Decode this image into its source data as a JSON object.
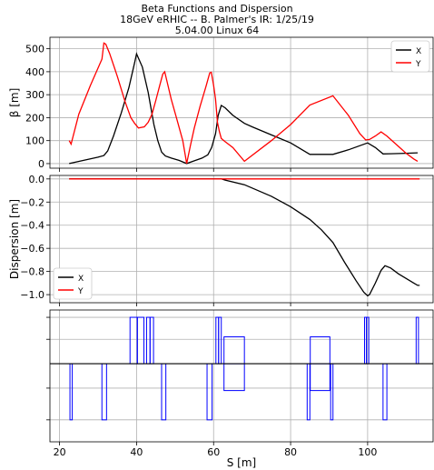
{
  "title": [
    "Beta Functions and Dispersion",
    "18GeV eRHIC -- B. Palmer's IR: 1/25/19",
    "5.04.00 Linux 64"
  ],
  "colors": {
    "x": "#000000",
    "y": "#ff0000",
    "magnet": "#0000ff",
    "grid": "#b0b0b0"
  },
  "chart_data": [
    {
      "type": "line",
      "ylabel": "β [m]",
      "xlim": [
        17.5,
        117
      ],
      "ylim": [
        -20,
        550
      ],
      "xticks": [
        20,
        40,
        60,
        80,
        100
      ],
      "yticks": [
        0,
        100,
        200,
        300,
        400,
        500
      ],
      "ytick_labels": [
        "0",
        "100",
        "200",
        "300",
        "400",
        "500"
      ],
      "legend": {
        "position": "top-right",
        "entries": [
          "X",
          "Y"
        ]
      },
      "grid": true,
      "series": [
        {
          "name": "X",
          "color": "#000000",
          "points": [
            [
              22.5,
              0
            ],
            [
              30,
              28
            ],
            [
              31.5,
              35
            ],
            [
              32.5,
              55
            ],
            [
              34,
              120
            ],
            [
              36,
              220
            ],
            [
              38,
              330
            ],
            [
              39.5,
              440
            ],
            [
              40,
              478
            ],
            [
              41.5,
              420
            ],
            [
              43,
              310
            ],
            [
              44.5,
              170
            ],
            [
              45.5,
              100
            ],
            [
              46.5,
              50
            ],
            [
              47.5,
              33
            ],
            [
              49,
              24
            ],
            [
              51,
              14
            ],
            [
              53,
              0
            ],
            [
              55,
              12
            ],
            [
              57,
              24
            ],
            [
              58.5,
              38
            ],
            [
              59.5,
              70
            ],
            [
              60.5,
              130
            ],
            [
              61.2,
              210
            ],
            [
              62,
              253
            ],
            [
              63,
              243
            ],
            [
              65,
              210
            ],
            [
              68,
              175
            ],
            [
              70,
              160
            ],
            [
              75,
              125
            ],
            [
              80,
              90
            ],
            [
              85,
              40
            ],
            [
              91,
              40
            ],
            [
              95,
              60
            ],
            [
              100,
              90
            ],
            [
              102,
              70
            ],
            [
              104,
              42
            ],
            [
              106,
              43
            ],
            [
              110,
              45
            ],
            [
              113,
              47
            ]
          ]
        },
        {
          "name": "Y",
          "color": "#ff0000",
          "points": [
            [
              22.5,
              100
            ],
            [
              23,
              85
            ],
            [
              25,
              215
            ],
            [
              28,
              340
            ],
            [
              31,
              455
            ],
            [
              31.5,
              525
            ],
            [
              32,
              520
            ],
            [
              33,
              480
            ],
            [
              35,
              380
            ],
            [
              37,
              270
            ],
            [
              38.5,
              200
            ],
            [
              39.5,
              175
            ],
            [
              40.5,
              155
            ],
            [
              42,
              160
            ],
            [
              43,
              180
            ],
            [
              44,
              215
            ],
            [
              45,
              275
            ],
            [
              46,
              340
            ],
            [
              46.8,
              390
            ],
            [
              47.3,
              400
            ],
            [
              48,
              350
            ],
            [
              49,
              280
            ],
            [
              50.5,
              190
            ],
            [
              52,
              100
            ],
            [
              53,
              0
            ],
            [
              54,
              80
            ],
            [
              55,
              155
            ],
            [
              56.5,
              250
            ],
            [
              58,
              335
            ],
            [
              59,
              395
            ],
            [
              59.4,
              398
            ],
            [
              60,
              340
            ],
            [
              60.5,
              280
            ],
            [
              61,
              180
            ],
            [
              61.5,
              140
            ],
            [
              62,
              110
            ],
            [
              63,
              95
            ],
            [
              65,
              70
            ],
            [
              68,
              10
            ],
            [
              75,
              100
            ],
            [
              80,
              170
            ],
            [
              85,
              255
            ],
            [
              91,
              295
            ],
            [
              95,
              210
            ],
            [
              98,
              130
            ],
            [
              99.5,
              103
            ],
            [
              100.5,
              105
            ],
            [
              102,
              120
            ],
            [
              103.5,
              138
            ],
            [
              105,
              120
            ],
            [
              108,
              75
            ],
            [
              110,
              45
            ],
            [
              112,
              20
            ],
            [
              113,
              10
            ]
          ]
        }
      ]
    },
    {
      "type": "line",
      "ylabel": "Dispersion [m]",
      "xlim": [
        17.5,
        117
      ],
      "ylim": [
        -1.07,
        0.03
      ],
      "yticks": [
        0.0,
        -0.2,
        -0.4,
        -0.6,
        -0.8,
        -1.0
      ],
      "ytick_labels": [
        "0.0",
        "−0.2",
        "−0.4",
        "−0.6",
        "−0.8",
        "−1.0"
      ],
      "legend": {
        "position": "bottom-left",
        "entries": [
          "X",
          "Y"
        ]
      },
      "grid": true,
      "series": [
        {
          "name": "X",
          "color": "#000000",
          "points": [
            [
              22.5,
              0
            ],
            [
              62,
              0
            ],
            [
              63,
              -0.01
            ],
            [
              68,
              -0.05
            ],
            [
              75,
              -0.15
            ],
            [
              80,
              -0.24
            ],
            [
              85,
              -0.35
            ],
            [
              88,
              -0.44
            ],
            [
              91,
              -0.55
            ],
            [
              94,
              -0.72
            ],
            [
              97,
              -0.88
            ],
            [
              99,
              -0.98
            ],
            [
              100,
              -1.01
            ],
            [
              100.5,
              -1.0
            ],
            [
              102,
              -0.9
            ],
            [
              103.5,
              -0.79
            ],
            [
              104.5,
              -0.75
            ],
            [
              106,
              -0.77
            ],
            [
              108,
              -0.82
            ],
            [
              110,
              -0.86
            ],
            [
              112,
              -0.9
            ],
            [
              113,
              -0.92
            ],
            [
              113.5,
              -0.92
            ]
          ]
        },
        {
          "name": "Y",
          "color": "#ff0000",
          "points": [
            [
              22.5,
              0
            ],
            [
              113.5,
              0
            ]
          ]
        }
      ]
    },
    {
      "type": "layout",
      "xlabel": "S [m]",
      "xlim": [
        17.5,
        117
      ],
      "xticks": [
        20,
        40,
        60,
        80,
        100
      ],
      "xtick_labels": [
        "20",
        "40",
        "60",
        "80",
        "100"
      ],
      "ylim": [
        -1.6,
        1.1
      ],
      "baseline": 0,
      "elements": [
        {
          "s0": 22.7,
          "s1": 23.3,
          "h": -1.15
        },
        {
          "s0": 31.0,
          "s1": 32.2,
          "h": -1.15
        },
        {
          "s0": 38.3,
          "s1": 40.2,
          "h": 0.95
        },
        {
          "s0": 40.2,
          "s1": 41.9,
          "h": 0.95
        },
        {
          "s0": 42.6,
          "s1": 43.5,
          "h": 0.95
        },
        {
          "s0": 43.5,
          "s1": 44.4,
          "h": 0.95
        },
        {
          "s0": 46.5,
          "s1": 47.6,
          "h": -1.15
        },
        {
          "s0": 58.3,
          "s1": 59.6,
          "h": -1.15
        },
        {
          "s0": 60.6,
          "s1": 61.3,
          "h": 0.95
        },
        {
          "s0": 61.3,
          "s1": 62.0,
          "h": 0.95
        },
        {
          "s0": 62.7,
          "s1": 68.0,
          "h": 0.55
        },
        {
          "s0": 62.7,
          "s1": 68.0,
          "h": -0.55
        },
        {
          "s0": 84.3,
          "s1": 85.0,
          "h": -1.15
        },
        {
          "s0": 85.1,
          "s1": 90.2,
          "h": 0.55
        },
        {
          "s0": 85.1,
          "s1": 90.2,
          "h": -0.55
        },
        {
          "s0": 90.4,
          "s1": 91.0,
          "h": -1.15
        },
        {
          "s0": 99.2,
          "s1": 99.7,
          "h": 0.95
        },
        {
          "s0": 99.7,
          "s1": 100.3,
          "h": 0.95
        },
        {
          "s0": 104.0,
          "s1": 105.0,
          "h": -1.15
        },
        {
          "s0": 112.6,
          "s1": 113.2,
          "h": 0.95
        }
      ]
    }
  ]
}
